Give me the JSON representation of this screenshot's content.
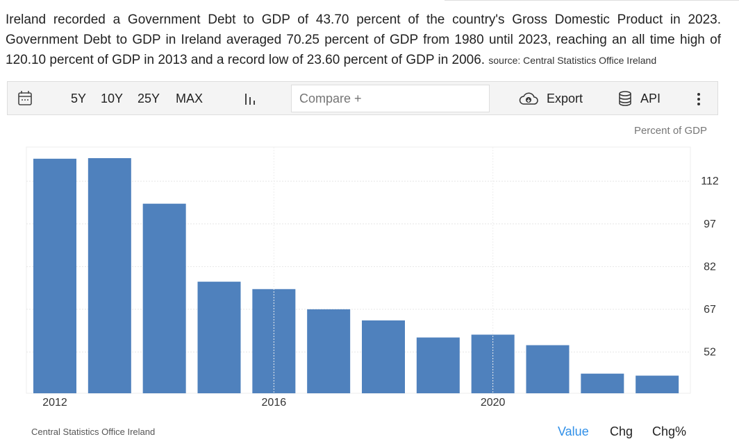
{
  "description": {
    "text": "Ireland recorded a Government Debt to GDP of 43.70 percent of the country's Gross Domestic Product in 2023. Government Debt to GDP in Ireland averaged 70.25 percent of GDP from 1980 until 2023, reaching an all time high of 120.10 percent of GDP in 2013 and a record low of 23.60 percent of GDP in 2006.",
    "source": "source: Central Statistics Office Ireland"
  },
  "toolbar": {
    "ranges": [
      "5Y",
      "10Y",
      "25Y",
      "MAX"
    ],
    "compare_placeholder": "Compare +",
    "export": "Export",
    "api": "API"
  },
  "footer": {
    "source": "Central Statistics Office Ireland",
    "tabs": [
      "Value",
      "Chg",
      "Chg%"
    ]
  },
  "colors": {
    "bar": "#4f81bd",
    "active_tab": "#2f8fe8"
  },
  "chart_data": {
    "type": "bar",
    "unit": "Percent of GDP",
    "categories": [
      "2012",
      "2013",
      "2014",
      "2015",
      "2016",
      "2017",
      "2018",
      "2019",
      "2020",
      "2021",
      "2022",
      "2023"
    ],
    "values": [
      119.9,
      120.1,
      104.1,
      76.7,
      74.1,
      67.0,
      63.1,
      57.1,
      58.1,
      54.4,
      44.4,
      43.7
    ],
    "x_tick_labels": [
      "2012",
      "2016",
      "2020"
    ],
    "y_ticks": [
      52,
      67,
      82,
      97,
      112
    ],
    "ylim": [
      37.5,
      124
    ],
    "grid": true
  }
}
